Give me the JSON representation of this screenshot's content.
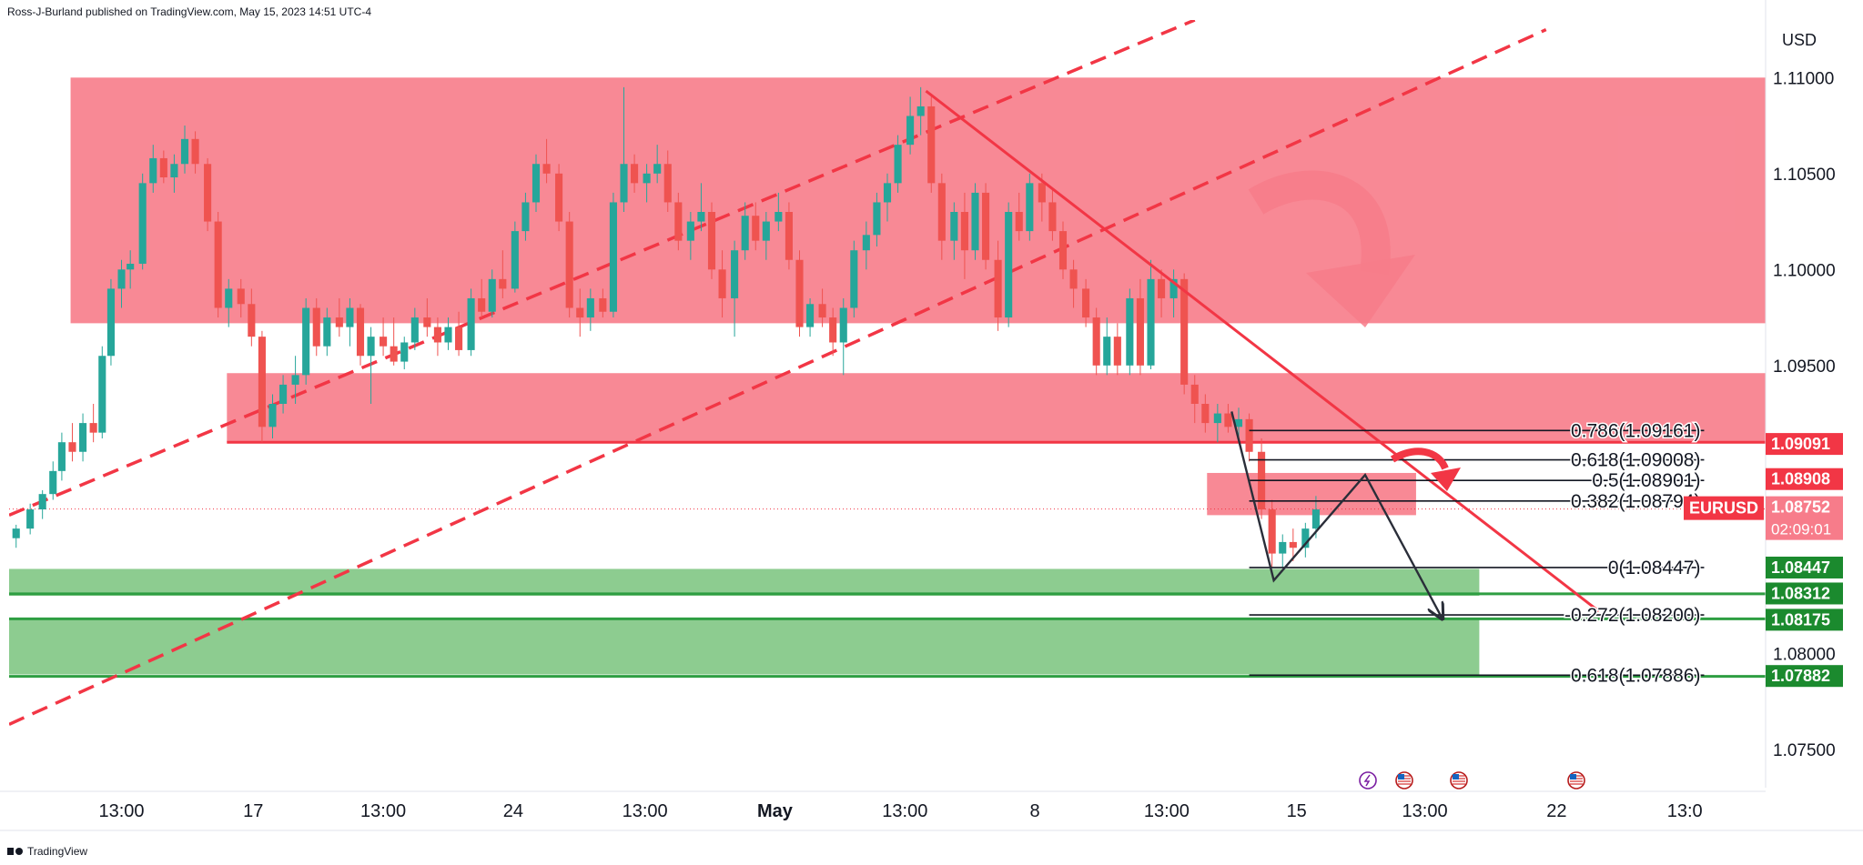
{
  "header": {
    "text": "Ross-J-Burland published on TradingView.com, May 15, 2023 14:51 UTC-4"
  },
  "footer": {
    "brand": "TradingView"
  },
  "chart_data": {
    "type": "candlestick",
    "symbol": "EURUSD",
    "currency_label": "USD",
    "y_range": [
      1.073,
      1.113
    ],
    "y_ticks": [
      {
        "label": "1.11000",
        "value": 1.11
      },
      {
        "label": "1.10500",
        "value": 1.105
      },
      {
        "label": "1.10000",
        "value": 1.1
      },
      {
        "label": "1.09500",
        "value": 1.095
      },
      {
        "label": "1.08000",
        "value": 1.08
      },
      {
        "label": "1.07500",
        "value": 1.075
      }
    ],
    "x_range": [
      0,
      100
    ],
    "x_ticks": [
      {
        "label": "13:00",
        "x": 6.4,
        "bold": false
      },
      {
        "label": "17",
        "x": 13.9,
        "bold": false
      },
      {
        "label": "13:00",
        "x": 21.3,
        "bold": false
      },
      {
        "label": "24",
        "x": 28.7,
        "bold": false
      },
      {
        "label": "13:00",
        "x": 36.2,
        "bold": false
      },
      {
        "label": "May",
        "x": 43.6,
        "bold": true
      },
      {
        "label": "13:00",
        "x": 51.0,
        "bold": false
      },
      {
        "label": "8",
        "x": 58.4,
        "bold": false
      },
      {
        "label": "13:00",
        "x": 65.9,
        "bold": false
      },
      {
        "label": "15",
        "x": 73.3,
        "bold": false
      },
      {
        "label": "13:00",
        "x": 80.6,
        "bold": false
      },
      {
        "label": "22",
        "x": 88.1,
        "bold": false
      },
      {
        "label": "13:0",
        "x": 95.4,
        "bold": false
      }
    ],
    "zones": [
      {
        "kind": "resistance",
        "color": "#f77c8a",
        "y1": 1.11,
        "y2": 1.0972,
        "x1": 3.5,
        "x2": 100
      },
      {
        "kind": "resistance",
        "color": "#f77c8a",
        "y1": 1.0946,
        "y2": 1.091,
        "x1": 12.4,
        "x2": 100
      },
      {
        "kind": "resistance",
        "color": "#f77c8a",
        "y1": 1.0894,
        "y2": 1.0872,
        "x1": 68.2,
        "x2": 80.1
      },
      {
        "kind": "support",
        "color": "#81c784",
        "y1": 1.0844,
        "y2": 1.083,
        "x1": 0,
        "x2": 83.7
      },
      {
        "kind": "support",
        "color": "#81c784",
        "y1": 1.0818,
        "y2": 1.0789,
        "x1": 0,
        "x2": 83.7
      }
    ],
    "horizontal_lines": [
      {
        "price": 1.091,
        "x1": 12.4,
        "x2": 100,
        "color": "#f23645"
      },
      {
        "price": 1.0831,
        "x1": 0,
        "x2": 100,
        "color": "#2e9e42"
      },
      {
        "price": 1.0818,
        "x1": 0,
        "x2": 100,
        "color": "#2e9e42"
      },
      {
        "price": 1.0788,
        "x1": 0,
        "x2": 100,
        "color": "#2e9e42"
      }
    ],
    "dashed_trendlines": [
      {
        "p1": [
          0,
          1.0872
        ],
        "p2": [
          67.5,
          1.113
        ],
        "color": "#f23645"
      },
      {
        "p1": [
          0,
          1.0763
        ],
        "p2": [
          87.5,
          1.1125
        ],
        "color": "#f23645"
      }
    ],
    "solid_trendlines": [
      {
        "p1": [
          52.2,
          1.1093
        ],
        "p2": [
          90.5,
          1.0822
        ],
        "color": "#f23645"
      }
    ],
    "fib_levels": [
      {
        "label": "0.786(1.09161)",
        "price": 1.09161
      },
      {
        "label": "0.618(1.09008)",
        "price": 1.09008
      },
      {
        "label": "0.5(1.08901)",
        "price": 1.08901
      },
      {
        "label": "0.382(1.08794)",
        "price": 1.08794
      },
      {
        "label": "0(1.08447)",
        "price": 1.08447
      },
      {
        "label": "-0.272(1.08200)",
        "price": 1.082
      },
      {
        "label": "0.618(1.07886)",
        "price": 1.07886
      }
    ],
    "fib_x_range": [
      70.6,
      96.5
    ],
    "projection_path": [
      [
        69.6,
        1.0926
      ],
      [
        72.0,
        1.0838
      ],
      [
        77.2,
        1.0893
      ],
      [
        81.6,
        1.0818
      ]
    ],
    "price_labels": [
      {
        "text": "1.09091",
        "price": 1.09091,
        "color": "#f23645"
      },
      {
        "text": "1.08908",
        "price": 1.08908,
        "color": "#f23645"
      },
      {
        "text": "1.08752",
        "price": 1.08752,
        "color": "#f77c8a",
        "sub": "02:09:01"
      },
      {
        "text": "1.08447",
        "price": 1.08447,
        "color": "#1b8a2e"
      },
      {
        "text": "1.08312",
        "price": 1.08312,
        "color": "#1b8a2e"
      },
      {
        "text": "1.08175",
        "price": 1.08175,
        "color": "#1b8a2e"
      },
      {
        "text": "1.07882",
        "price": 1.07882,
        "color": "#1b8a2e"
      }
    ],
    "last_price": 1.08752,
    "candles": [
      [
        0.4,
        1.086,
        1.0867,
        1.0855,
        1.0865
      ],
      [
        1.2,
        1.0865,
        1.0878,
        1.0862,
        1.0875
      ],
      [
        1.9,
        1.0875,
        1.0885,
        1.087,
        1.0883
      ],
      [
        2.5,
        1.0883,
        1.09,
        1.088,
        1.0895
      ],
      [
        3.0,
        1.0895,
        1.0915,
        1.089,
        1.091
      ],
      [
        3.6,
        1.091,
        1.092,
        1.09,
        1.0905
      ],
      [
        4.2,
        1.0905,
        1.0925,
        1.09,
        1.092
      ],
      [
        4.8,
        1.092,
        1.093,
        1.091,
        1.0915
      ],
      [
        5.3,
        1.0915,
        1.096,
        1.0912,
        1.0955
      ],
      [
        5.8,
        1.0955,
        1.0995,
        1.095,
        1.099
      ],
      [
        6.4,
        1.099,
        1.1005,
        1.098,
        1.1
      ],
      [
        6.9,
        1.1,
        1.101,
        1.099,
        1.1003
      ],
      [
        7.6,
        1.1003,
        1.105,
        1.1,
        1.1045
      ],
      [
        8.2,
        1.1045,
        1.1065,
        1.104,
        1.1058
      ],
      [
        8.8,
        1.1058,
        1.1062,
        1.1045,
        1.1048
      ],
      [
        9.4,
        1.1048,
        1.106,
        1.104,
        1.1055
      ],
      [
        10.0,
        1.1055,
        1.1075,
        1.105,
        1.1068
      ],
      [
        10.6,
        1.1068,
        1.1072,
        1.105,
        1.1055
      ],
      [
        11.3,
        1.1055,
        1.1058,
        1.102,
        1.1025
      ],
      [
        11.9,
        1.1025,
        1.103,
        1.0975,
        1.098
      ],
      [
        12.5,
        1.098,
        1.0995,
        1.097,
        1.099
      ],
      [
        13.2,
        1.099,
        1.0995,
        1.0975,
        1.0982
      ],
      [
        13.8,
        1.0982,
        1.099,
        1.096,
        1.0965
      ],
      [
        14.4,
        1.0965,
        1.0968,
        1.091,
        1.0918
      ],
      [
        15.0,
        1.0918,
        1.0935,
        1.0912,
        1.093
      ],
      [
        15.6,
        1.093,
        1.0945,
        1.0925,
        1.094
      ],
      [
        16.3,
        1.094,
        1.0955,
        1.093,
        1.0945
      ],
      [
        16.9,
        1.0945,
        1.0985,
        1.094,
        1.098
      ],
      [
        17.5,
        1.098,
        1.0985,
        1.0955,
        1.096
      ],
      [
        18.1,
        1.096,
        1.098,
        1.0955,
        1.0975
      ],
      [
        18.8,
        1.0975,
        1.0985,
        1.0965,
        1.097
      ],
      [
        19.4,
        1.097,
        1.0985,
        1.096,
        1.098
      ],
      [
        20.0,
        1.098,
        1.0982,
        1.095,
        1.0955
      ],
      [
        20.6,
        1.0955,
        1.097,
        1.093,
        1.0965
      ],
      [
        21.3,
        1.0965,
        1.0975,
        1.0955,
        1.096
      ],
      [
        21.9,
        1.096,
        1.0975,
        1.095,
        1.0952
      ],
      [
        22.5,
        1.0952,
        1.0965,
        1.0948,
        1.0962
      ],
      [
        23.1,
        1.0962,
        1.098,
        1.0958,
        1.0975
      ],
      [
        23.8,
        1.0975,
        1.0985,
        1.0965,
        1.097
      ],
      [
        24.4,
        1.097,
        1.0975,
        1.0955,
        1.0962
      ],
      [
        25.0,
        1.0962,
        1.0975,
        1.0958,
        1.097
      ],
      [
        25.6,
        1.097,
        1.0978,
        1.0955,
        1.0958
      ],
      [
        26.3,
        1.0958,
        1.099,
        1.0955,
        1.0985
      ],
      [
        26.9,
        1.0985,
        1.0995,
        1.0975,
        1.0978
      ],
      [
        27.5,
        1.0978,
        1.1,
        1.0975,
        1.0995
      ],
      [
        28.1,
        1.0995,
        1.101,
        1.0985,
        1.099
      ],
      [
        28.8,
        1.099,
        1.1025,
        1.0988,
        1.102
      ],
      [
        29.4,
        1.102,
        1.104,
        1.1015,
        1.1035
      ],
      [
        30.0,
        1.1035,
        1.106,
        1.103,
        1.1055
      ],
      [
        30.6,
        1.1055,
        1.1068,
        1.1045,
        1.105
      ],
      [
        31.3,
        1.105,
        1.1055,
        1.102,
        1.1025
      ],
      [
        31.9,
        1.1025,
        1.103,
        1.0975,
        1.098
      ],
      [
        32.5,
        1.098,
        1.099,
        1.0965,
        1.0975
      ],
      [
        33.1,
        1.0975,
        1.099,
        1.0968,
        1.0985
      ],
      [
        33.8,
        1.0985,
        1.099,
        1.0975,
        1.0978
      ],
      [
        34.4,
        1.0978,
        1.104,
        1.0975,
        1.1035
      ],
      [
        35.0,
        1.1035,
        1.1095,
        1.103,
        1.1055
      ],
      [
        35.6,
        1.1055,
        1.106,
        1.104,
        1.1045
      ],
      [
        36.3,
        1.1045,
        1.1055,
        1.1035,
        1.105
      ],
      [
        36.9,
        1.105,
        1.1065,
        1.1045,
        1.1055
      ],
      [
        37.5,
        1.1055,
        1.1062,
        1.103,
        1.1035
      ],
      [
        38.1,
        1.1035,
        1.104,
        1.101,
        1.1015
      ],
      [
        38.8,
        1.1015,
        1.103,
        1.1005,
        1.1025
      ],
      [
        39.4,
        1.1025,
        1.1045,
        1.102,
        1.103
      ],
      [
        40.0,
        1.103,
        1.1035,
        1.0995,
        1.1
      ],
      [
        40.6,
        1.1,
        1.101,
        1.0975,
        1.0985
      ],
      [
        41.3,
        1.0985,
        1.1015,
        1.0965,
        1.101
      ],
      [
        41.9,
        1.101,
        1.1035,
        1.1005,
        1.1028
      ],
      [
        42.5,
        1.1028,
        1.1035,
        1.101,
        1.1015
      ],
      [
        43.1,
        1.1015,
        1.103,
        1.1005,
        1.1025
      ],
      [
        43.8,
        1.1025,
        1.104,
        1.102,
        1.103
      ],
      [
        44.4,
        1.103,
        1.1035,
        1.1,
        1.1005
      ],
      [
        45.0,
        1.1005,
        1.101,
        1.0965,
        1.097
      ],
      [
        45.6,
        1.097,
        1.0985,
        1.0965,
        1.0982
      ],
      [
        46.3,
        1.0982,
        1.099,
        1.097,
        1.0975
      ],
      [
        46.9,
        1.0975,
        1.098,
        1.0955,
        1.0962
      ],
      [
        47.5,
        1.0962,
        1.0985,
        1.0945,
        1.098
      ],
      [
        48.1,
        1.098,
        1.1015,
        1.0975,
        1.101
      ],
      [
        48.8,
        1.101,
        1.1025,
        1.1,
        1.1018
      ],
      [
        49.4,
        1.1018,
        1.104,
        1.1012,
        1.1035
      ],
      [
        50.0,
        1.1035,
        1.105,
        1.1025,
        1.1045
      ],
      [
        50.6,
        1.1045,
        1.107,
        1.104,
        1.1065
      ],
      [
        51.3,
        1.1065,
        1.109,
        1.106,
        1.108
      ],
      [
        51.9,
        1.108,
        1.1095,
        1.107,
        1.1085
      ],
      [
        52.5,
        1.1085,
        1.109,
        1.104,
        1.1045
      ],
      [
        53.1,
        1.1045,
        1.105,
        1.1005,
        1.1015
      ],
      [
        53.8,
        1.1015,
        1.1035,
        1.1005,
        1.103
      ],
      [
        54.4,
        1.103,
        1.104,
        1.0995,
        1.101
      ],
      [
        55.0,
        1.101,
        1.1045,
        1.1005,
        1.104
      ],
      [
        55.6,
        1.104,
        1.1045,
        1.1,
        1.1005
      ],
      [
        56.3,
        1.1005,
        1.1015,
        1.0968,
        1.0975
      ],
      [
        56.9,
        1.0975,
        1.1035,
        1.097,
        1.103
      ],
      [
        57.5,
        1.103,
        1.104,
        1.1015,
        1.102
      ],
      [
        58.1,
        1.102,
        1.105,
        1.1015,
        1.1045
      ],
      [
        58.8,
        1.1045,
        1.105,
        1.1025,
        1.1035
      ],
      [
        59.4,
        1.1035,
        1.1042,
        1.1015,
        1.102
      ],
      [
        60.0,
        1.102,
        1.1025,
        1.0995,
        1.1
      ],
      [
        60.6,
        1.1,
        1.1005,
        1.098,
        1.099
      ],
      [
        61.3,
        1.099,
        1.0995,
        1.097,
        1.0975
      ],
      [
        61.9,
        1.0975,
        1.098,
        1.0945,
        1.095
      ],
      [
        62.5,
        1.095,
        1.0975,
        1.0945,
        1.0965
      ],
      [
        63.1,
        1.0965,
        1.0972,
        1.0945,
        1.095
      ],
      [
        63.8,
        1.095,
        1.099,
        1.0945,
        1.0985
      ],
      [
        64.4,
        1.0985,
        1.0995,
        1.0945,
        1.095
      ],
      [
        65.0,
        1.095,
        1.1005,
        1.0948,
        1.0995
      ],
      [
        65.6,
        1.0995,
        1.1,
        1.0975,
        1.0985
      ],
      [
        66.3,
        1.0985,
        1.1,
        1.0975,
        1.0995
      ],
      [
        66.9,
        1.0995,
        1.0998,
        1.0935,
        1.094
      ],
      [
        67.5,
        1.094,
        1.0945,
        1.092,
        1.093
      ],
      [
        68.1,
        1.093,
        1.0935,
        1.0915,
        1.092
      ],
      [
        68.8,
        1.092,
        1.093,
        1.091,
        1.0925
      ],
      [
        69.4,
        1.0925,
        1.093,
        1.0915,
        1.0918
      ],
      [
        70.0,
        1.0918,
        1.0928,
        1.0912,
        1.0922
      ],
      [
        70.6,
        1.0922,
        1.0925,
        1.09,
        1.0905
      ],
      [
        71.3,
        1.0905,
        1.0912,
        1.087,
        1.0875
      ],
      [
        71.9,
        1.0875,
        1.088,
        1.0845,
        1.0852
      ],
      [
        72.5,
        1.0852,
        1.0862,
        1.0845,
        1.0858
      ],
      [
        73.1,
        1.0858,
        1.0865,
        1.0848,
        1.0855
      ],
      [
        73.8,
        1.0855,
        1.0868,
        1.085,
        1.0865
      ],
      [
        74.4,
        1.0865,
        1.0882,
        1.086,
        1.0875
      ]
    ]
  }
}
